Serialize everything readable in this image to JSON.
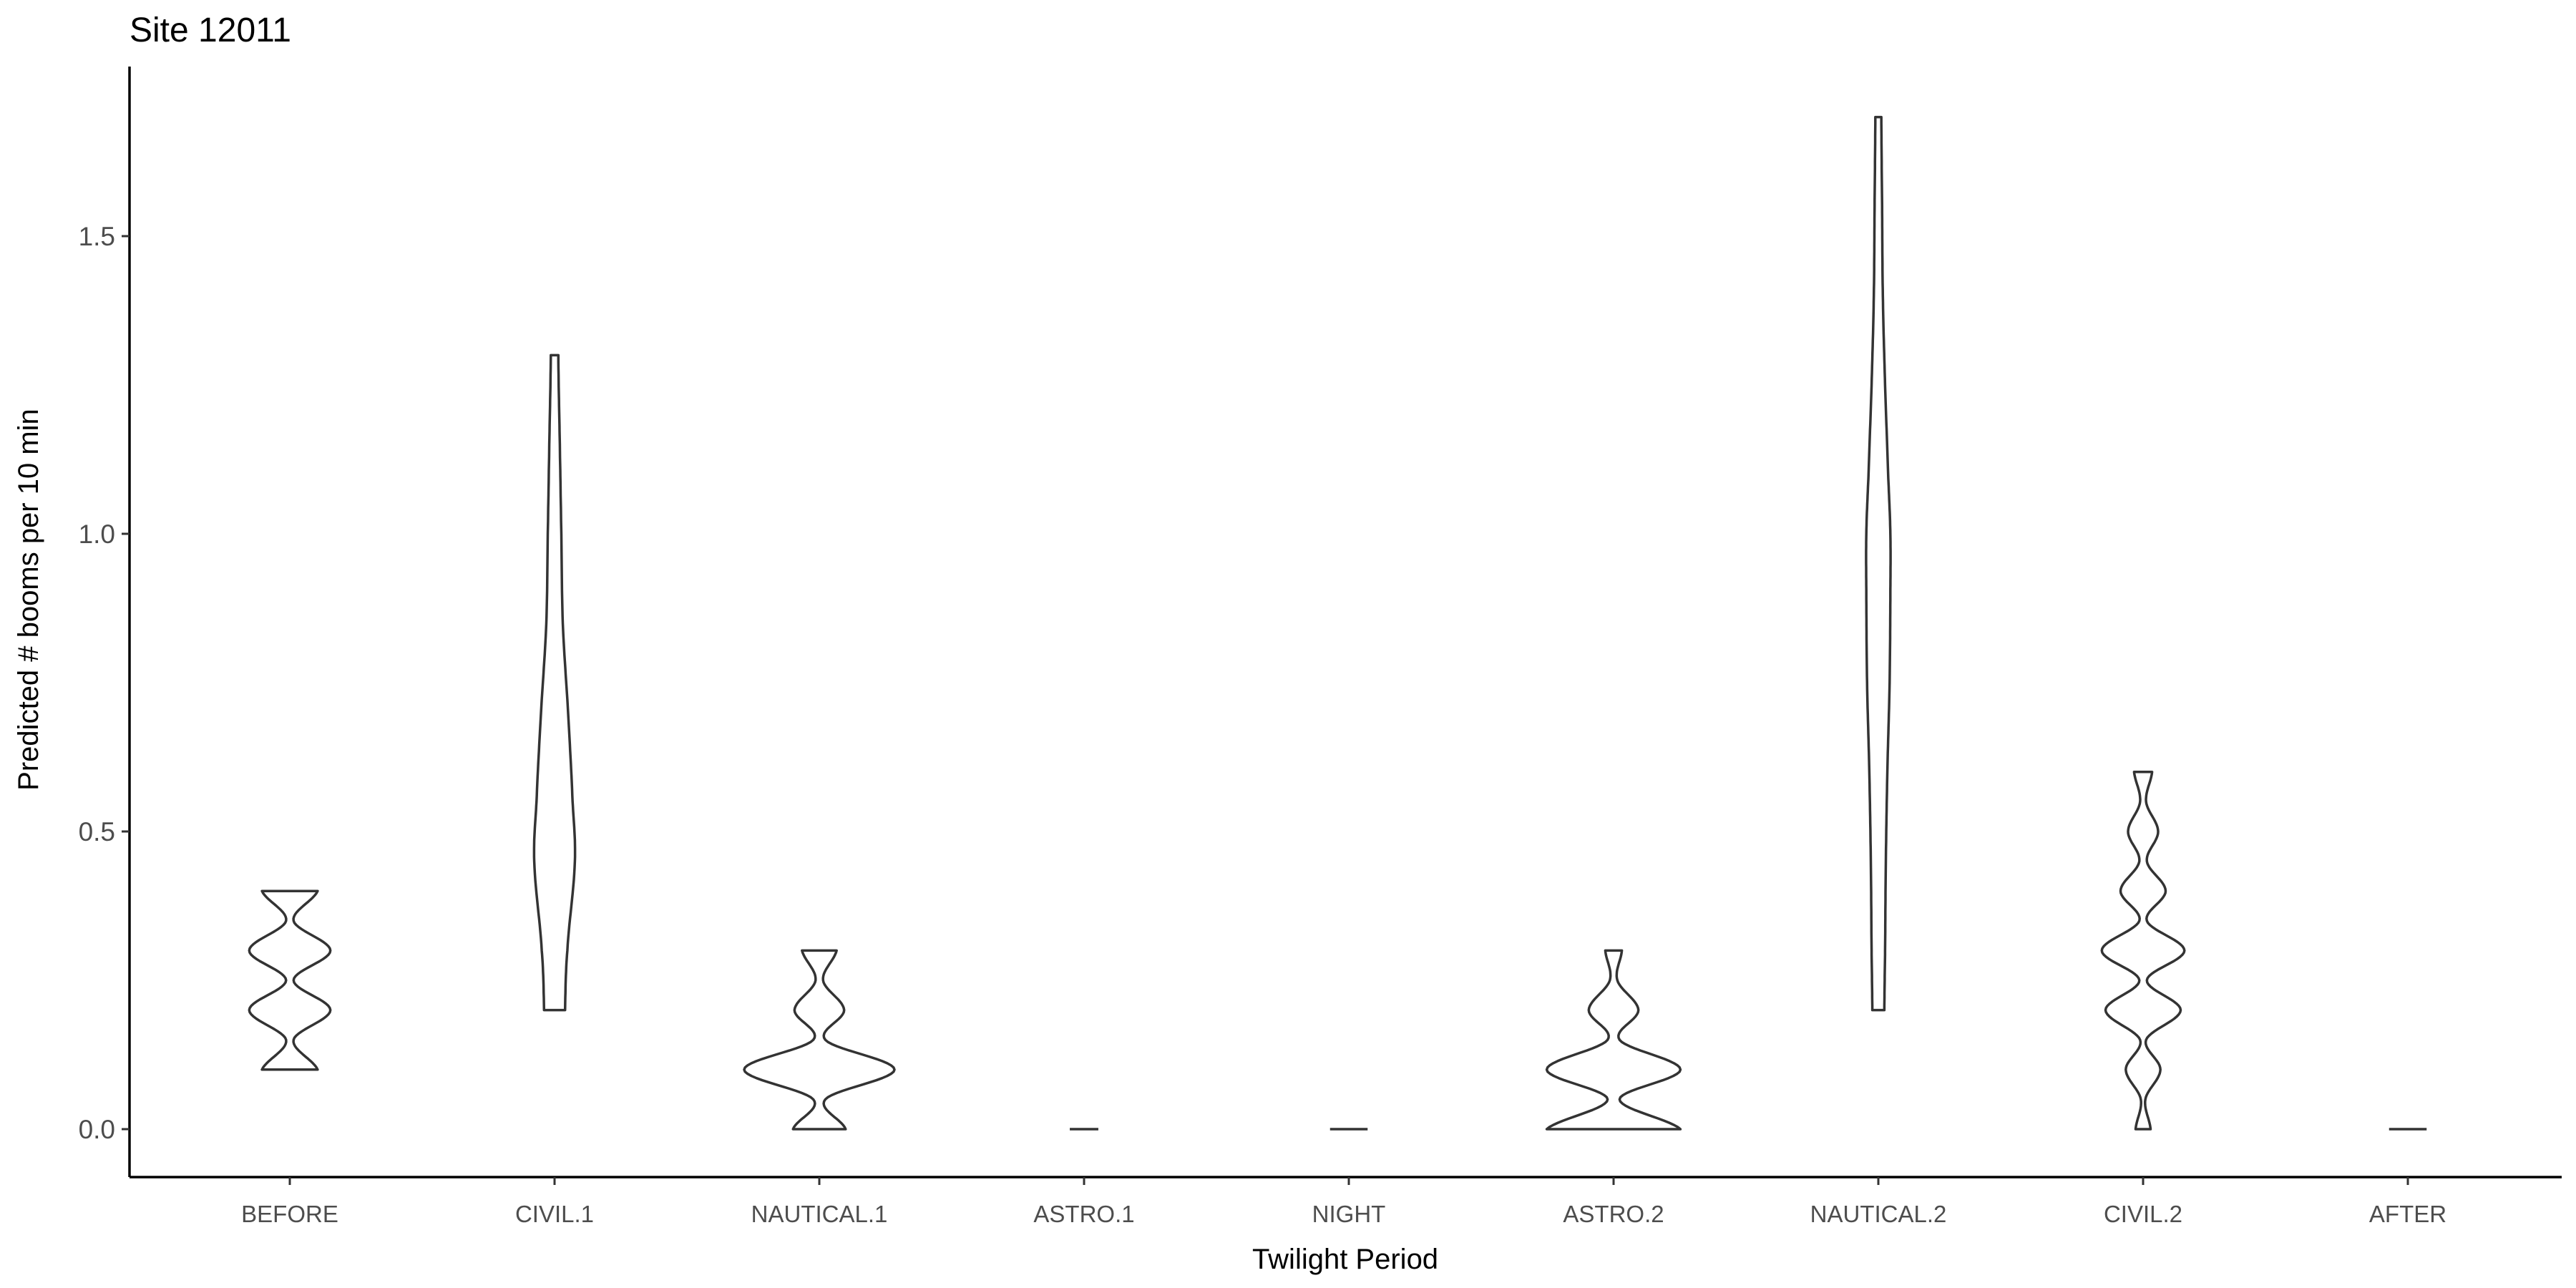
{
  "chart_data": {
    "type": "violin",
    "title": "Site 12011",
    "xlabel": "Twilight Period",
    "ylabel": "Predicted # booms per 10 min",
    "categories": [
      "BEFORE",
      "CIVIL.1",
      "NAUTICAL.1",
      "ASTRO.1",
      "NIGHT",
      "ASTRO.2",
      "NAUTICAL.2",
      "CIVIL.2",
      "AFTER"
    ],
    "ylim": [
      -0.085,
      1.78
    ],
    "yticks": [
      0.0,
      0.5,
      1.0,
      1.5
    ],
    "ytick_labels": [
      "0.0",
      "0.5",
      "1.0",
      "1.5"
    ],
    "grid": false,
    "legend": "none",
    "colors": {
      "outline": "#333333",
      "fill": "#ffffff",
      "axis": "#000000",
      "tick_text": "#4d4d4d"
    },
    "violins": [
      {
        "category": "BEFORE",
        "ymin": 0.1,
        "ymax": 0.4,
        "profile": [
          [
            0.1,
            0.37
          ],
          [
            0.15,
            0.05
          ],
          [
            0.2,
            0.54
          ],
          [
            0.25,
            0.05
          ],
          [
            0.3,
            0.54
          ],
          [
            0.35,
            0.05
          ],
          [
            0.4,
            0.37
          ]
        ]
      },
      {
        "category": "CIVIL.1",
        "ymin": 0.2,
        "ymax": 1.3,
        "profile": [
          [
            0.2,
            0.14
          ],
          [
            0.3,
            0.17
          ],
          [
            0.45,
            0.27
          ],
          [
            0.55,
            0.24
          ],
          [
            0.7,
            0.18
          ],
          [
            0.85,
            0.11
          ],
          [
            1.0,
            0.09
          ],
          [
            1.15,
            0.07
          ],
          [
            1.3,
            0.05
          ]
        ]
      },
      {
        "category": "NAUTICAL.1",
        "ymin": 0.0,
        "ymax": 0.3,
        "profile": [
          [
            0.0,
            0.35
          ],
          [
            0.05,
            0.08
          ],
          [
            0.1,
            1.0
          ],
          [
            0.15,
            0.08
          ],
          [
            0.2,
            0.33
          ],
          [
            0.25,
            0.05
          ],
          [
            0.3,
            0.23
          ]
        ]
      },
      {
        "category": "ASTRO.1",
        "ymin": 0.0,
        "ymax": 0.0,
        "profile": [
          [
            0.0,
            0.19
          ]
        ]
      },
      {
        "category": "NIGHT",
        "ymin": 0.0,
        "ymax": 0.0,
        "profile": [
          [
            0.0,
            0.25
          ]
        ]
      },
      {
        "category": "ASTRO.2",
        "ymin": 0.0,
        "ymax": 0.3,
        "profile": [
          [
            0.0,
            0.89
          ],
          [
            0.05,
            0.08
          ],
          [
            0.1,
            0.89
          ],
          [
            0.15,
            0.08
          ],
          [
            0.2,
            0.33
          ],
          [
            0.25,
            0.05
          ],
          [
            0.3,
            0.11
          ]
        ]
      },
      {
        "category": "NAUTICAL.2",
        "ymin": 0.2,
        "ymax": 1.7,
        "profile": [
          [
            0.2,
            0.08
          ],
          [
            0.3,
            0.09
          ],
          [
            0.45,
            0.1
          ],
          [
            0.6,
            0.12
          ],
          [
            0.75,
            0.15
          ],
          [
            0.9,
            0.16
          ],
          [
            1.0,
            0.16
          ],
          [
            1.1,
            0.13
          ],
          [
            1.25,
            0.09
          ],
          [
            1.4,
            0.06
          ],
          [
            1.55,
            0.05
          ],
          [
            1.7,
            0.04
          ]
        ]
      },
      {
        "category": "CIVIL.2",
        "ymin": 0.0,
        "ymax": 0.6,
        "profile": [
          [
            0.0,
            0.1
          ],
          [
            0.05,
            0.03
          ],
          [
            0.1,
            0.23
          ],
          [
            0.15,
            0.04
          ],
          [
            0.2,
            0.5
          ],
          [
            0.25,
            0.05
          ],
          [
            0.3,
            0.55
          ],
          [
            0.35,
            0.05
          ],
          [
            0.4,
            0.3
          ],
          [
            0.45,
            0.05
          ],
          [
            0.5,
            0.2
          ],
          [
            0.55,
            0.04
          ],
          [
            0.6,
            0.12
          ]
        ]
      },
      {
        "category": "AFTER",
        "ymin": 0.0,
        "ymax": 0.0,
        "profile": [
          [
            0.0,
            0.25
          ]
        ]
      }
    ]
  }
}
